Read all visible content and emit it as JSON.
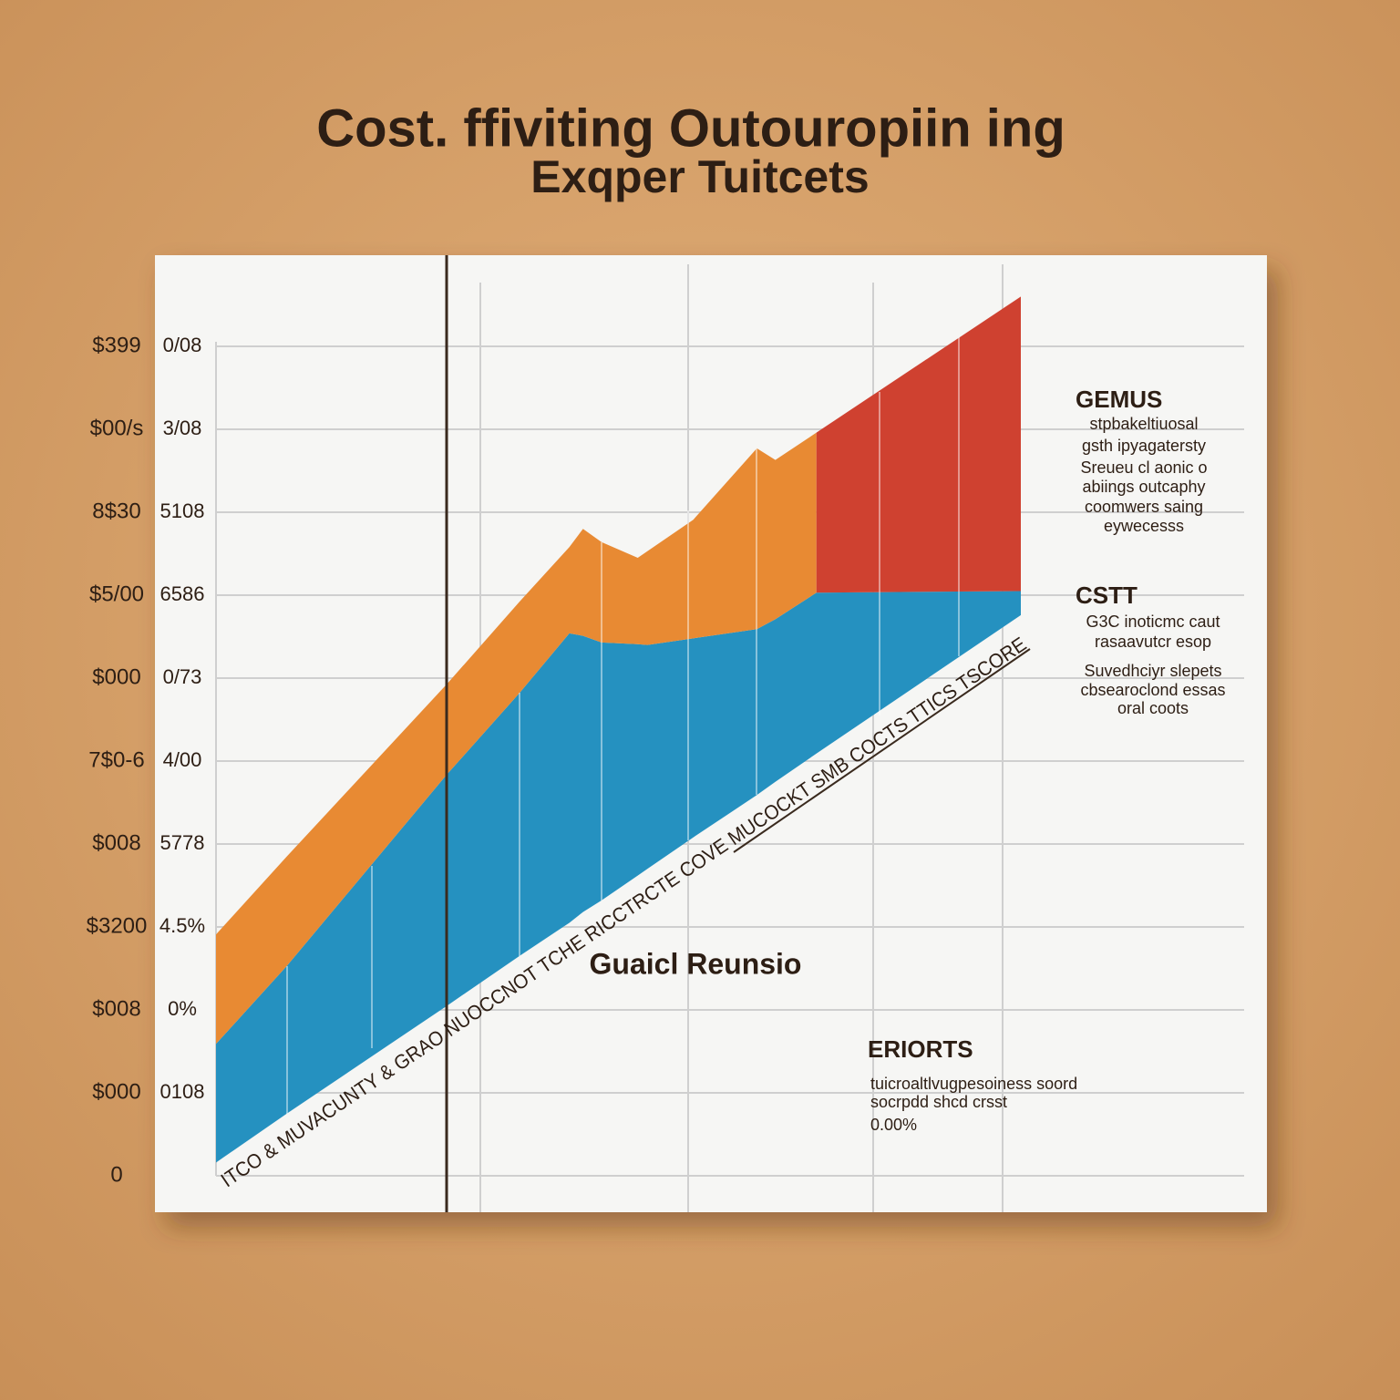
{
  "chart_data": {
    "type": "range-area",
    "title": "Cost. ffiviting Outouropiin ing",
    "subtitle": "Exqper Tuitcets",
    "footer": "Guaicl Reunsio",
    "diagonal_text": "ITCO & MUVACUNTY & GRAO NUOCCNOT TCHE RICCTRCTE COVE MUCOCKT SMB COCTS TTICS TSCORE",
    "xlim": [
      0,
      100
    ],
    "ylim": [
      0,
      10
    ],
    "y2lim": [
      0,
      10
    ],
    "grid": true,
    "yticks": [
      0,
      {
        "value": 1,
        "label": "$000"
      },
      {
        "value": 2,
        "label": "$008"
      },
      {
        "value": 3,
        "label": "$3200"
      },
      {
        "value": 4,
        "label": "$008"
      },
      {
        "value": 5,
        "label": "7$0-6"
      },
      {
        "value": 6,
        "label": "$000"
      },
      {
        "value": 7,
        "label": "$5/00"
      },
      {
        "value": 8,
        "label": "8$30"
      },
      {
        "value": 9,
        "label": "$00/s"
      },
      {
        "value": 10,
        "label": "$399"
      }
    ],
    "y2ticks": [
      {
        "value": 1,
        "label": "0108"
      },
      {
        "value": 2,
        "label": "0%"
      },
      {
        "value": 3,
        "label": "4.5%"
      },
      {
        "value": 4,
        "label": "5778"
      },
      {
        "value": 5,
        "label": "4/00"
      },
      {
        "value": 6,
        "label": "0/73"
      },
      {
        "value": 7,
        "label": "6586"
      },
      {
        "value": 8,
        "label": "5108"
      },
      {
        "value": 9,
        "label": "3/08"
      },
      {
        "value": 10,
        "label": "0/08"
      }
    ],
    "x": [
      0,
      8.8,
      28.7,
      37.7,
      43.9,
      45.6,
      47.9,
      52.4,
      53.6,
      59.3,
      67.2,
      69.5,
      74.6,
      100
    ],
    "series": [
      {
        "color": "#2591c0",
        "low": [
          0.16,
          0.75,
          2.05,
          2.65,
          3.05,
          3.18,
          3.32,
          3.62,
          3.7,
          4.08,
          4.59,
          4.75,
          5.09,
          6.76
        ],
        "high": [
          1.59,
          2.53,
          4.84,
          5.82,
          6.54,
          6.51,
          6.43,
          6.41,
          6.4,
          6.48,
          6.59,
          6.71,
          7.03,
          7.05
        ]
      },
      {
        "color": "#e88a33",
        "low": [
          1.59,
          2.53,
          4.84,
          5.82,
          6.54,
          6.51,
          6.43,
          6.41,
          6.4,
          6.48,
          6.59,
          6.71,
          7.03,
          null
        ],
        "high": [
          2.91,
          3.85,
          5.93,
          6.92,
          7.58,
          7.8,
          7.64,
          7.45,
          7.53,
          7.91,
          8.77,
          8.63,
          8.96,
          null
        ]
      },
      {
        "color": "#cf4130",
        "low": [
          null,
          null,
          null,
          null,
          null,
          null,
          null,
          null,
          null,
          null,
          null,
          null,
          7.03,
          7.05
        ],
        "high": [
          null,
          null,
          null,
          null,
          null,
          null,
          null,
          null,
          null,
          null,
          null,
          null,
          8.96,
          10.6
        ]
      }
    ],
    "annotations": [
      {
        "heading": "GEMUS",
        "lines": [
          "stpbakeltiuosal",
          "gsth ipyagatersty",
          "Sreueu cl aonic o",
          "abiings outcaphy",
          "coomwers saing",
          "eywecesss"
        ]
      },
      {
        "heading": "CSTT",
        "lines": [
          "G3C inoticmc caut",
          "rasaavutcr esop",
          "Suvedhciyr slepets",
          "cbsearoclond essas",
          "oral coots"
        ]
      },
      {
        "heading": "ERIORTS",
        "lines": [
          "tuicroaltlvugpesoiness soord",
          "socrpdd shcd crsst",
          "0.00%"
        ]
      }
    ]
  }
}
